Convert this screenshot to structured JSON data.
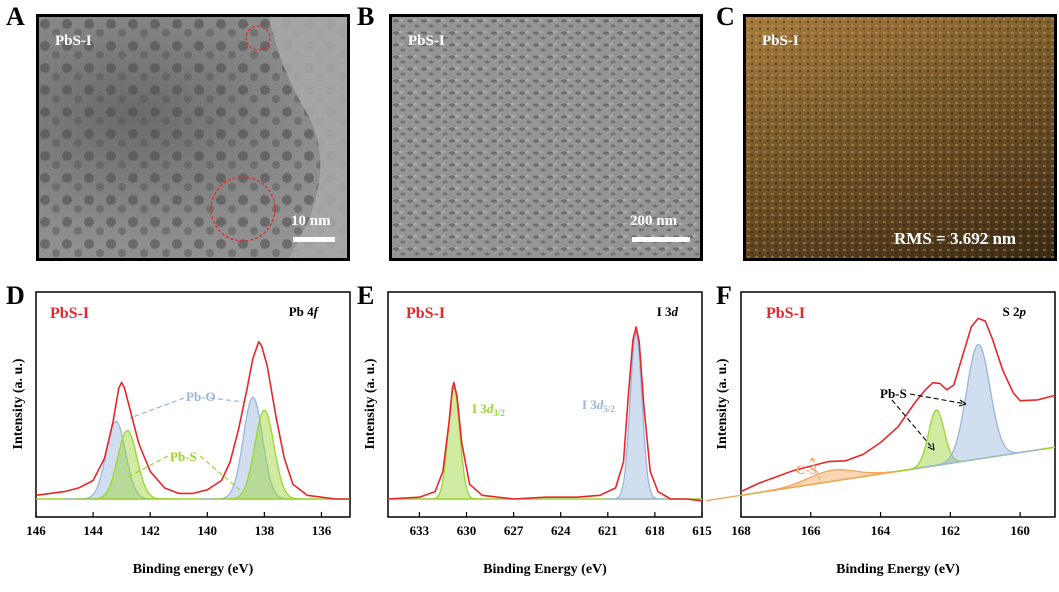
{
  "panel_labels": {
    "a": "A",
    "b": "B",
    "c": "C",
    "d": "D",
    "e": "E",
    "f": "F"
  },
  "images": {
    "a": {
      "sample": "PbS-I",
      "scale": "10 nm"
    },
    "b": {
      "sample": "PbS-I",
      "scale": "200 nm"
    },
    "c": {
      "sample": "PbS-I",
      "annotation": "RMS = 3.692 nm"
    }
  },
  "colors": {
    "envelope": "#e8262a",
    "blue": "#9ab6dc",
    "green": "#9ad531",
    "orange": "#f7a35c",
    "sample": "#e8262a"
  },
  "chart_data": [
    {
      "panel": "D",
      "type": "line",
      "sample": "PbS-I",
      "title": "Pb 4f",
      "title_main": "Pb 4",
      "title_italic": "f",
      "xlabel": "Binding energy (eV)",
      "ylabel": "Intensity (a. u.)",
      "xlim": [
        146,
        135
      ],
      "ylim": [
        0,
        1
      ],
      "xticks": [
        "146",
        "144",
        "142",
        "140",
        "138",
        "136"
      ],
      "series": [
        {
          "name": "Pb-O",
          "color": "#9ab6dc",
          "fill": true,
          "peaks": [
            [
              143.2,
              0.42
            ],
            [
              138.4,
              0.55
            ]
          ],
          "width": 0.45
        },
        {
          "name": "Pb-S",
          "color": "#9ad531",
          "fill": true,
          "peaks": [
            [
              142.8,
              0.37
            ],
            [
              138.0,
              0.48
            ]
          ],
          "width": 0.45
        },
        {
          "color": "#e8262a",
          "x": [
            146,
            145,
            144.5,
            144,
            143.6,
            143.3,
            143.1,
            143.0,
            142.9,
            142.7,
            142.4,
            142.0,
            141.5,
            141,
            140.5,
            140,
            139.5,
            139.2,
            138.9,
            138.6,
            138.4,
            138.2,
            138.1,
            137.9,
            137.6,
            137.3,
            137.0,
            136.5,
            136,
            135.5,
            135
          ],
          "y": [
            0.02,
            0.04,
            0.06,
            0.1,
            0.22,
            0.42,
            0.6,
            0.63,
            0.6,
            0.48,
            0.3,
            0.15,
            0.06,
            0.03,
            0.03,
            0.05,
            0.1,
            0.2,
            0.38,
            0.6,
            0.76,
            0.85,
            0.83,
            0.72,
            0.45,
            0.22,
            0.08,
            0.02,
            0.01,
            0.0,
            0.0
          ]
        }
      ],
      "annotations": [
        {
          "text": "Pb-O"
        },
        {
          "text": "Pb-S"
        }
      ]
    },
    {
      "panel": "E",
      "type": "line",
      "sample": "PbS-I",
      "title": "I 3d",
      "title_main": "I 3",
      "title_italic": "d",
      "xlabel": "Binding Energy (eV)",
      "ylabel": "Intensity (a. u.)",
      "xlim": [
        635,
        615
      ],
      "ylim": [
        0,
        1
      ],
      "xticks": [
        "633",
        "630",
        "627",
        "624",
        "621",
        "618",
        "615"
      ],
      "series": [
        {
          "name": "I 3d3/2",
          "color": "#9ad531",
          "fill": true,
          "peaks": [
            [
              630.8,
              0.6
            ]
          ],
          "width": 0.5
        },
        {
          "name": "I 3d5/2",
          "color": "#9ab6dc",
          "fill": true,
          "peaks": [
            [
              619.2,
              0.9
            ]
          ],
          "width": 0.5
        },
        {
          "color": "#e8262a",
          "x": [
            635,
            633,
            632,
            631.5,
            631.1,
            630.9,
            630.8,
            630.6,
            630.3,
            629.8,
            629,
            628,
            627,
            625,
            623,
            621.5,
            620.5,
            620,
            619.7,
            619.4,
            619.2,
            619.0,
            618.7,
            618.3,
            617.8,
            617,
            616,
            615
          ],
          "y": [
            0.0,
            0.01,
            0.04,
            0.15,
            0.42,
            0.6,
            0.63,
            0.55,
            0.3,
            0.08,
            0.02,
            0.01,
            0.0,
            0.01,
            0.01,
            0.02,
            0.06,
            0.2,
            0.55,
            0.86,
            0.93,
            0.85,
            0.5,
            0.15,
            0.04,
            0.0,
            0.0,
            -0.01
          ]
        }
      ],
      "annotations": [
        {
          "main": "I 3",
          "italic": "d",
          "sub": "3/2"
        },
        {
          "main": "I 3",
          "italic": "d",
          "sub": "5/2"
        }
      ]
    },
    {
      "panel": "F",
      "type": "line",
      "sample": "PbS-I",
      "title": "S 2p",
      "title_main": "S 2",
      "title_italic": "p",
      "xlabel": "Binding Energy (eV)",
      "ylabel": "Intensity (a. u.)",
      "xlim": [
        168,
        159
      ],
      "ylim": [
        0,
        1
      ],
      "xticks": [
        "168",
        "166",
        "164",
        "162",
        "160"
      ],
      "series": [
        {
          "name": "C-S",
          "color": "#f7a35c",
          "fill": true,
          "peaks": [
            [
              165.4,
              0.06
            ]
          ],
          "width": 0.9
        },
        {
          "name": "Pb-S",
          "color": "#9ad531",
          "fill": true,
          "peaks": [
            [
              162.4,
              0.3
            ]
          ],
          "width": 0.3
        },
        {
          "name": "Pb-S",
          "color": "#9ab6dc",
          "fill": true,
          "peaks": [
            [
              161.2,
              0.62
            ]
          ],
          "width": 0.45
        },
        {
          "color": "#e8262a",
          "x": [
            168,
            167.5,
            167,
            166.5,
            166,
            165.5,
            165,
            164.5,
            164,
            163.5,
            163,
            162.7,
            162.5,
            162.3,
            162.1,
            161.9,
            161.6,
            161.4,
            161.2,
            161.0,
            160.8,
            160.5,
            160.2,
            160,
            159.5,
            159
          ],
          "y": [
            0.02,
            0.05,
            0.07,
            0.09,
            0.1,
            0.11,
            0.1,
            0.12,
            0.17,
            0.24,
            0.36,
            0.42,
            0.45,
            0.44,
            0.4,
            0.42,
            0.6,
            0.72,
            0.76,
            0.74,
            0.64,
            0.46,
            0.33,
            0.28,
            0.27,
            0.28
          ]
        }
      ],
      "annotations": [
        {
          "text": "Pb-S"
        },
        {
          "text": "C-S"
        }
      ]
    }
  ]
}
